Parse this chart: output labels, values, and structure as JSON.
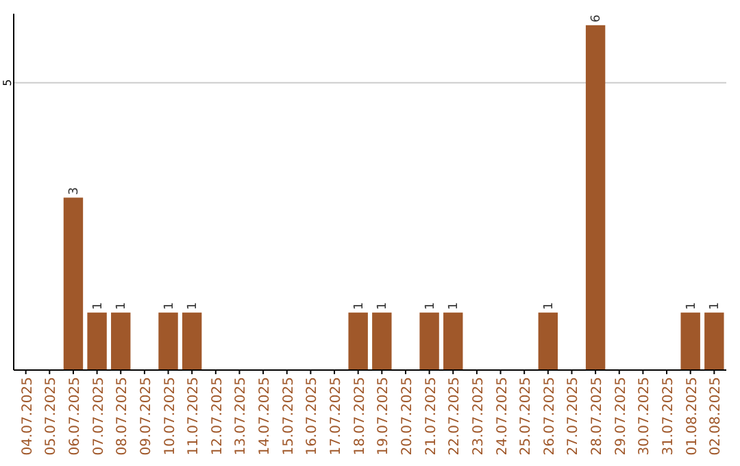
{
  "chart_data": {
    "type": "bar",
    "categories": [
      "04.07.2025",
      "05.07.2025",
      "06.07.2025",
      "07.07.2025",
      "08.07.2025",
      "09.07.2025",
      "10.07.2025",
      "11.07.2025",
      "12.07.2025",
      "13.07.2025",
      "14.07.2025",
      "15.07.2025",
      "16.07.2025",
      "17.07.2025",
      "18.07.2025",
      "19.07.2025",
      "20.07.2025",
      "21.07.2025",
      "22.07.2025",
      "23.07.2025",
      "24.07.2025",
      "25.07.2025",
      "26.07.2025",
      "27.07.2025",
      "28.07.2025",
      "29.07.2025",
      "30.07.2025",
      "31.07.2025",
      "01.08.2025",
      "02.08.2025"
    ],
    "values": [
      0,
      0,
      3,
      1,
      1,
      0,
      1,
      1,
      0,
      0,
      0,
      0,
      0,
      0,
      1,
      1,
      0,
      1,
      1,
      0,
      0,
      0,
      1,
      0,
      6,
      0,
      0,
      0,
      1,
      1
    ],
    "color": "#a0582a",
    "value_labels": [
      null,
      null,
      "3",
      "1",
      "1",
      null,
      "1",
      "1",
      null,
      null,
      null,
      null,
      null,
      null,
      "1",
      "1",
      null,
      "1",
      "1",
      null,
      null,
      null,
      "1",
      null,
      "6",
      null,
      null,
      null,
      "1",
      "1"
    ],
    "ylim": [
      0,
      6.2
    ],
    "yticks": [
      5
    ],
    "grid": "y"
  }
}
